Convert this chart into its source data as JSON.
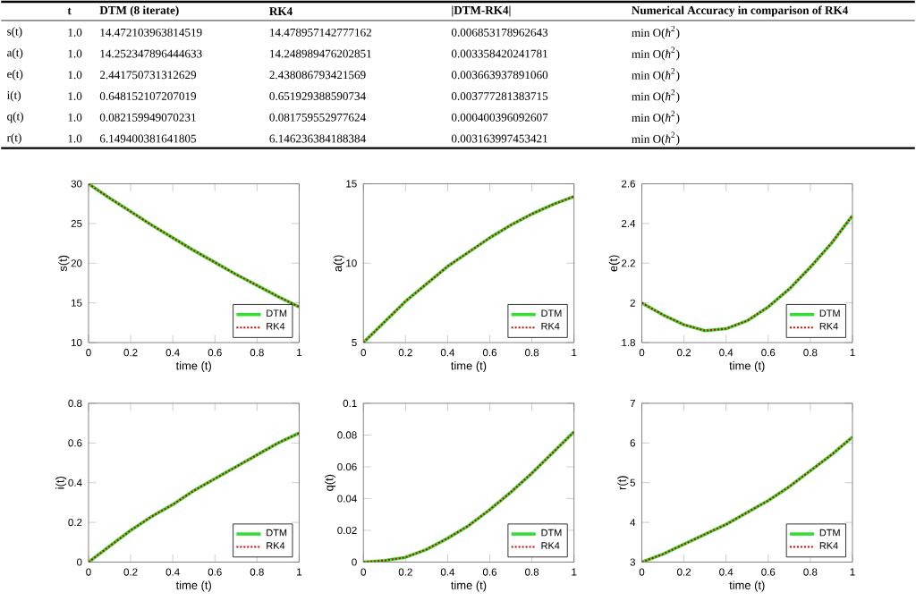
{
  "chart_data": [
    {
      "type": "other",
      "annotations": [
        "t",
        "DTM (8 iterate)",
        "RK4",
        "|DTM-RK4|",
        "Numerical Accuracy in comparison of RK4",
        "s(t)",
        "1.0",
        "14.472103963814519",
        "14.478957142777162",
        "0.006853178962643",
        "min O(*ħ*$^{2}$)",
        "a(t)",
        "1.0",
        "14.252347896444633",
        "14.248989476202851",
        "0.003358420241781",
        "min O(*ħ*$^{2}$)",
        "e(t)",
        "1.0",
        "2.441750731312629",
        "2.438086793421569",
        "0.003663937891060",
        "min O(*ħ*$^{2}$)",
        "i(t)",
        "1.0",
        "0.648152107207019",
        "0.651929388590734",
        "0.003777281383715",
        "min O(*ħ*$^{2}$)",
        "q(t)",
        "1.0",
        "0.082159949070231",
        "0.081759552977624",
        "0.000400396092607",
        "min O(*ħ*$^{2}$)",
        "r(t)",
        "1.0",
        "6.149400381641805",
        "6.146236384188384",
        "0.003163997453421",
        "min O(*ħ*$^{2}$)"
      ]
    },
    {
      "type": "line",
      "xlabel": "time (t)",
      "ylabel": "s(t)",
      "x": [
        0,
        0.1,
        0.2,
        0.3,
        0.4,
        0.5,
        0.6,
        0.7,
        0.8,
        0.9,
        1
      ],
      "xlim": [
        0,
        1
      ],
      "xticks": [
        0,
        0.2,
        0.4,
        0.6,
        0.8,
        1
      ],
      "ylim": [
        10,
        30
      ],
      "yticks": [
        10,
        15,
        20,
        25,
        30
      ],
      "legend": "bottom right",
      "marker": "none",
      "grid": false,
      "series": [
        {
          "name": "DTM",
          "color": "#33dd33",
          "line_style": "solid",
          "values": [
            30,
            28.2,
            26.5,
            24.8,
            23.2,
            21.6,
            20.1,
            18.6,
            17.2,
            15.8,
            14.5
          ]
        },
        {
          "name": "RK4",
          "color": "#cc0000",
          "line_style": "dotted",
          "values": [
            30,
            28.2,
            26.5,
            24.8,
            23.2,
            21.6,
            20.1,
            18.6,
            17.2,
            15.8,
            14.5
          ]
        }
      ]
    },
    {
      "type": "line",
      "xlabel": "time (t)",
      "ylabel": "a(t)",
      "x": [
        0,
        0.1,
        0.2,
        0.3,
        0.4,
        0.5,
        0.6,
        0.7,
        0.8,
        0.9,
        1
      ],
      "xlim": [
        0,
        1
      ],
      "xticks": [
        0,
        0.2,
        0.4,
        0.6,
        0.8,
        1
      ],
      "ylim": [
        5,
        15
      ],
      "yticks": [
        5,
        10,
        15
      ],
      "legend": "bottom right",
      "marker": "none",
      "grid": false,
      "series": [
        {
          "name": "DTM",
          "color": "#33dd33",
          "line_style": "solid",
          "values": [
            5,
            6.3,
            7.6,
            8.7,
            9.8,
            10.7,
            11.6,
            12.4,
            13.1,
            13.7,
            14.2
          ]
        },
        {
          "name": "RK4",
          "color": "#cc0000",
          "line_style": "dotted",
          "values": [
            5,
            6.3,
            7.6,
            8.7,
            9.8,
            10.7,
            11.6,
            12.4,
            13.1,
            13.7,
            14.2
          ]
        }
      ]
    },
    {
      "type": "line",
      "xlabel": "time (t)",
      "ylabel": "e(t)",
      "x": [
        0,
        0.1,
        0.2,
        0.3,
        0.4,
        0.5,
        0.6,
        0.7,
        0.8,
        0.9,
        1
      ],
      "xlim": [
        0,
        1
      ],
      "xticks": [
        0,
        0.2,
        0.4,
        0.6,
        0.8,
        1
      ],
      "ylim": [
        1.8,
        2.6
      ],
      "yticks": [
        1.8,
        2,
        2.2,
        2.4,
        2.6
      ],
      "legend": "bottom right",
      "marker": "none",
      "grid": false,
      "series": [
        {
          "name": "DTM",
          "color": "#33dd33",
          "line_style": "solid",
          "values": [
            2,
            1.94,
            1.89,
            1.86,
            1.87,
            1.91,
            1.98,
            2.07,
            2.18,
            2.3,
            2.44
          ]
        },
        {
          "name": "RK4",
          "color": "#cc0000",
          "line_style": "dotted",
          "values": [
            2,
            1.94,
            1.89,
            1.86,
            1.87,
            1.91,
            1.98,
            2.07,
            2.18,
            2.3,
            2.44
          ]
        }
      ]
    },
    {
      "type": "line",
      "xlabel": "time (t)",
      "ylabel": "i(t)",
      "x": [
        0,
        0.1,
        0.2,
        0.3,
        0.4,
        0.5,
        0.6,
        0.7,
        0.8,
        0.9,
        1
      ],
      "xlim": [
        0,
        1
      ],
      "xticks": [
        0,
        0.2,
        0.4,
        0.6,
        0.8,
        1
      ],
      "ylim": [
        0,
        0.8
      ],
      "yticks": [
        0,
        0.2,
        0.4,
        0.6,
        0.8
      ],
      "legend": "bottom right",
      "marker": "none",
      "grid": false,
      "series": [
        {
          "name": "DTM",
          "color": "#33dd33",
          "line_style": "solid",
          "values": [
            0,
            0.08,
            0.16,
            0.23,
            0.29,
            0.36,
            0.42,
            0.48,
            0.54,
            0.6,
            0.65
          ]
        },
        {
          "name": "RK4",
          "color": "#cc0000",
          "line_style": "dotted",
          "values": [
            0,
            0.08,
            0.16,
            0.23,
            0.29,
            0.36,
            0.42,
            0.48,
            0.54,
            0.6,
            0.65
          ]
        }
      ]
    },
    {
      "type": "line",
      "xlabel": "time (t)",
      "ylabel": "q(t)",
      "x": [
        0,
        0.1,
        0.2,
        0.3,
        0.4,
        0.5,
        0.6,
        0.7,
        0.8,
        0.9,
        1
      ],
      "xlim": [
        0,
        1
      ],
      "xticks": [
        0,
        0.2,
        0.4,
        0.6,
        0.8,
        1
      ],
      "ylim": [
        0,
        0.1
      ],
      "yticks": [
        0,
        0.02,
        0.04,
        0.06,
        0.08,
        0.1
      ],
      "legend": "bottom right",
      "marker": "none",
      "grid": false,
      "series": [
        {
          "name": "DTM",
          "color": "#33dd33",
          "line_style": "solid",
          "values": [
            0,
            0.001,
            0.003,
            0.008,
            0.015,
            0.023,
            0.033,
            0.044,
            0.056,
            0.069,
            0.082
          ]
        },
        {
          "name": "RK4",
          "color": "#cc0000",
          "line_style": "dotted",
          "values": [
            0,
            0.001,
            0.003,
            0.008,
            0.015,
            0.023,
            0.033,
            0.044,
            0.056,
            0.069,
            0.082
          ]
        }
      ]
    },
    {
      "type": "line",
      "xlabel": "time (t)",
      "ylabel": "r(t)",
      "x": [
        0,
        0.1,
        0.2,
        0.3,
        0.4,
        0.5,
        0.6,
        0.7,
        0.8,
        0.9,
        1
      ],
      "xlim": [
        0,
        1
      ],
      "xticks": [
        0,
        0.2,
        0.4,
        0.6,
        0.8,
        1
      ],
      "ylim": [
        3,
        7
      ],
      "yticks": [
        3,
        4,
        5,
        6,
        7
      ],
      "legend": "bottom right",
      "marker": "none",
      "grid": false,
      "series": [
        {
          "name": "DTM",
          "color": "#33dd33",
          "line_style": "solid",
          "values": [
            3,
            3.2,
            3.45,
            3.7,
            3.95,
            4.25,
            4.55,
            4.9,
            5.3,
            5.7,
            6.15
          ]
        },
        {
          "name": "RK4",
          "color": "#cc0000",
          "line_style": "dotted",
          "values": [
            3,
            3.2,
            3.45,
            3.7,
            3.95,
            4.25,
            4.55,
            4.9,
            5.3,
            5.7,
            6.15
          ]
        }
      ]
    }
  ]
}
